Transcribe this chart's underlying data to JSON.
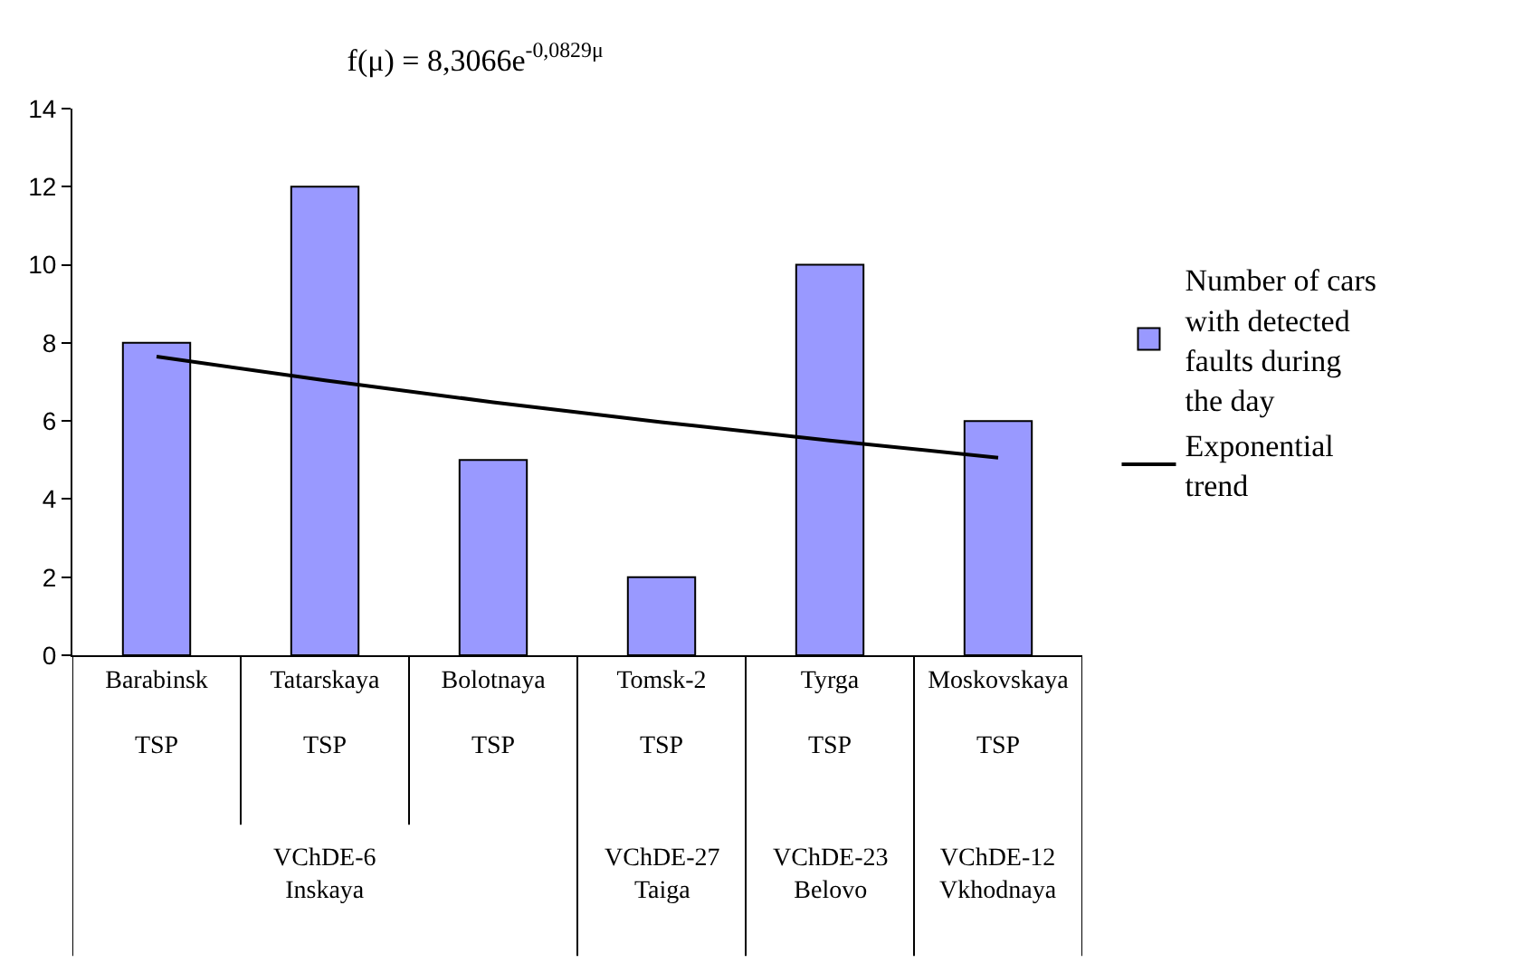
{
  "chart_data": {
    "type": "bar",
    "title": "f(μ) = 8,3066e$^{-0,0829μ}$",
    "categories": [
      "Barabinsk\nTSP",
      "Tatarskaya\nTSP",
      "Bolotnaya\nTSP",
      "Tomsk-2\nTSP",
      "Tyrga\nTSP",
      "Moskovskaya\nTSP"
    ],
    "series": [
      {
        "name": "Number of cars with detected faults during the day",
        "color": "#9999ff",
        "values": [
          8,
          12,
          5,
          2,
          10,
          6
        ]
      },
      {
        "name": "Exponential trend",
        "type": "line",
        "color": "#000000",
        "values": [
          7.65,
          7.04,
          6.48,
          5.97,
          5.5,
          5.06
        ]
      }
    ],
    "annotations": [
      "VChDE-6\nInskaya",
      "VChDE-27\nTaiga",
      "VChDE-23\nBelovo",
      "VChDE-12\nVkhodnaya"
    ],
    "ylim": [
      0,
      14
    ],
    "yticks": [
      0,
      2,
      4,
      6,
      8,
      10,
      12,
      14
    ],
    "grid": false,
    "legend": "right",
    "marker": "none"
  }
}
